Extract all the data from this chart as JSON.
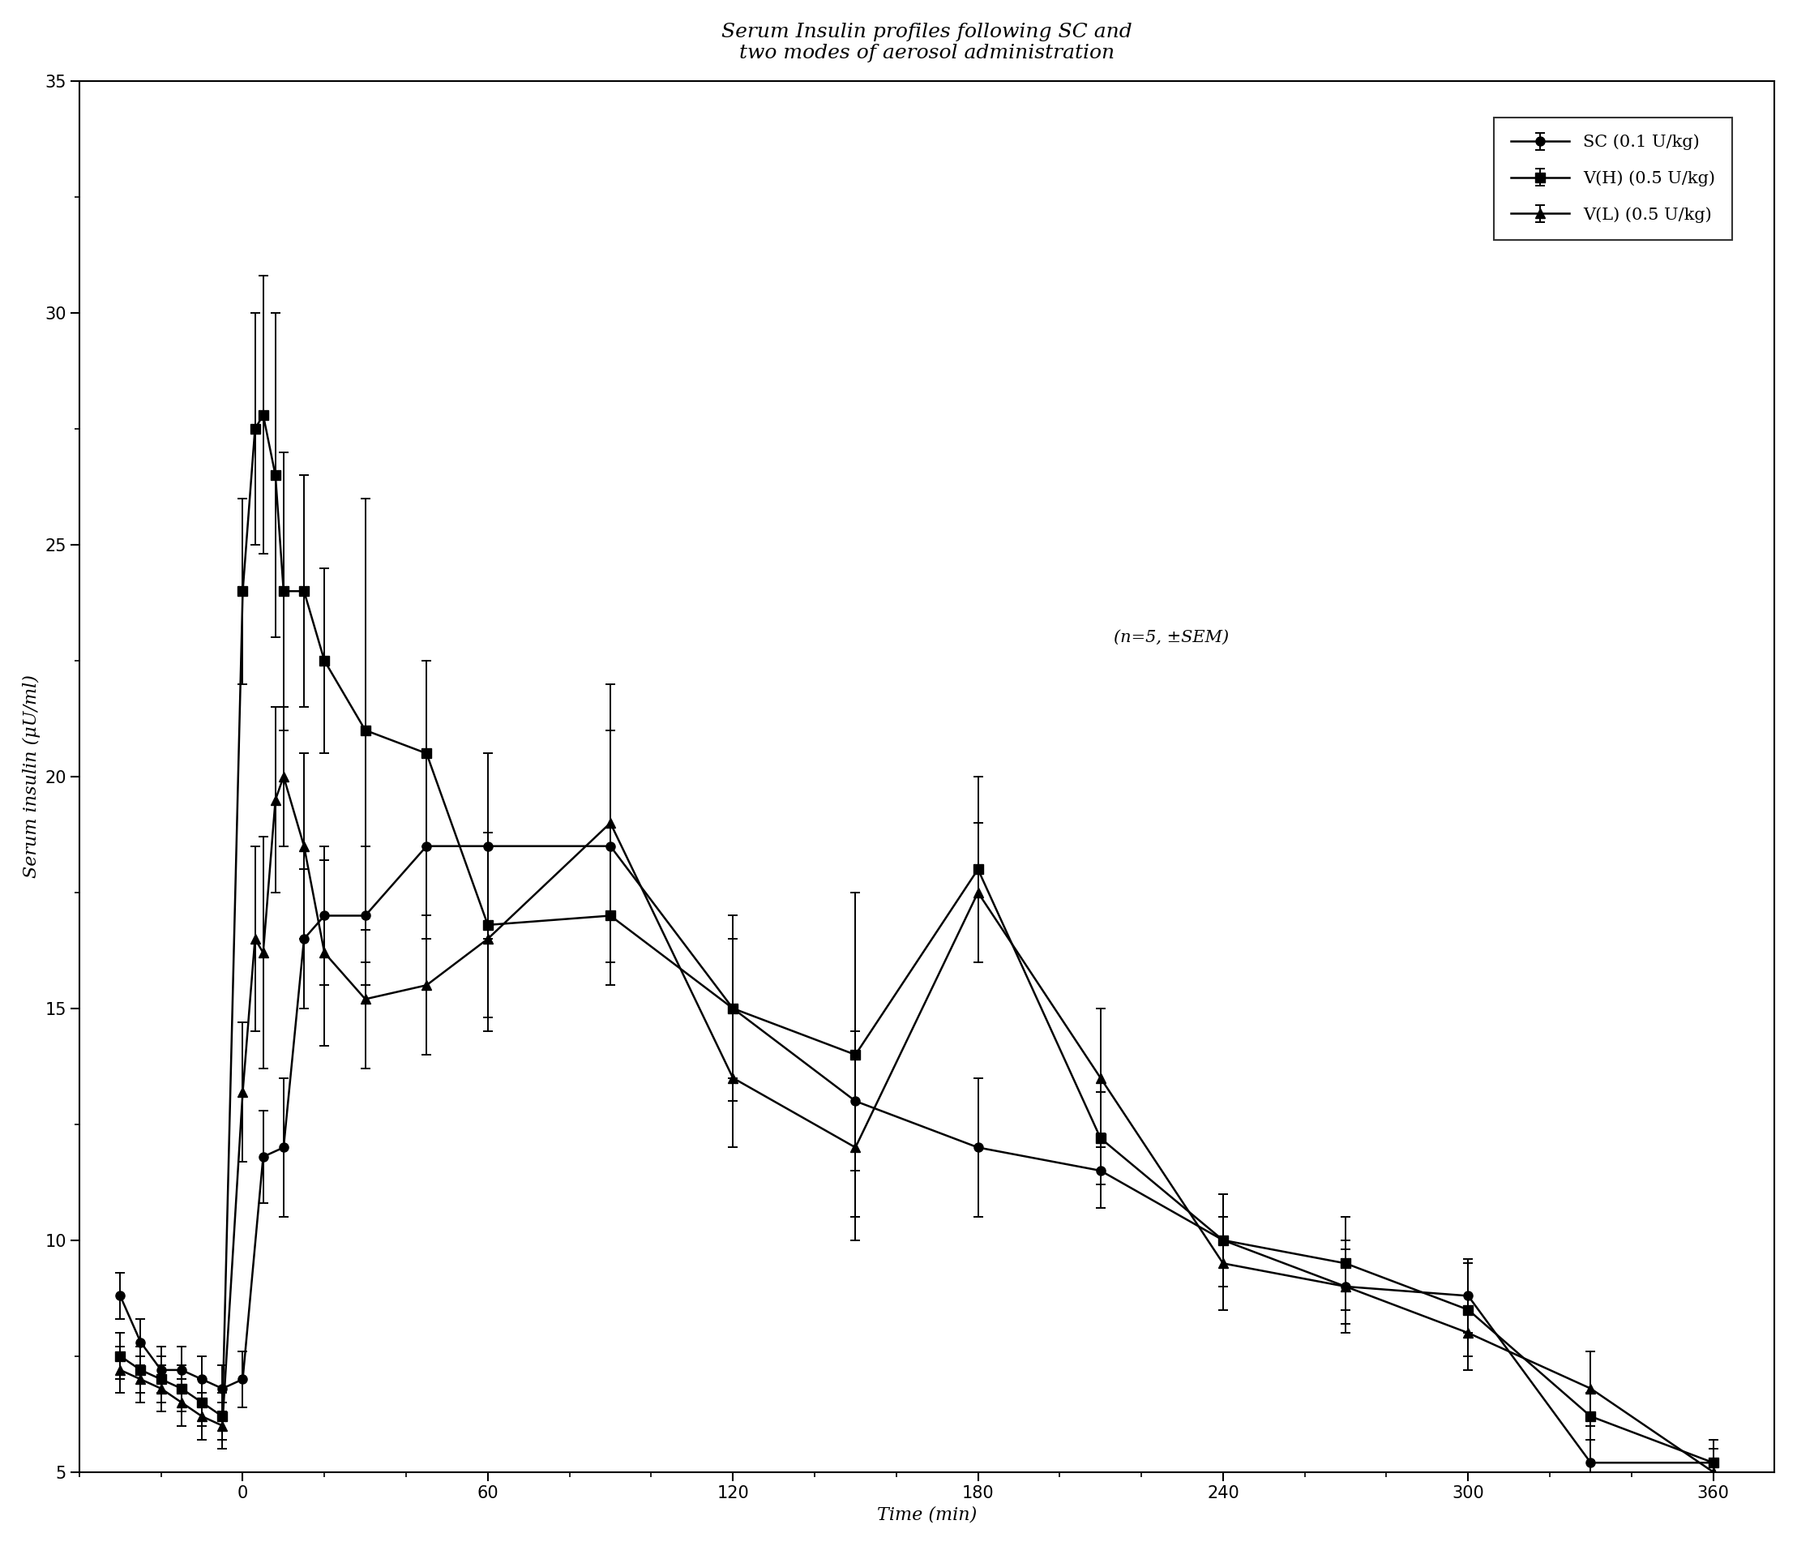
{
  "title_line1": "Serum Insulin profiles following SC and",
  "title_line2": "two modes of aerosol administration",
  "xlabel": "Time (min)",
  "ylabel": "Serum insulin (μU/ml)",
  "annotation": "(n=5, ±SEM)",
  "ylim": [
    5,
    35
  ],
  "yticks": [
    5,
    10,
    15,
    20,
    25,
    30,
    35
  ],
  "xticks": [
    0,
    60,
    120,
    180,
    240,
    300,
    360
  ],
  "xlim": [
    -40,
    375
  ],
  "SC": {
    "label": "SC (0.1 U/kg)",
    "marker": "o",
    "x": [
      -30,
      -25,
      -20,
      -15,
      -10,
      -5,
      0,
      5,
      10,
      15,
      20,
      30,
      45,
      60,
      90,
      120,
      150,
      180,
      210,
      240,
      270,
      300,
      330,
      360
    ],
    "y": [
      8.8,
      7.8,
      7.2,
      7.2,
      7.0,
      6.8,
      7.0,
      11.8,
      12.0,
      16.5,
      17.0,
      17.0,
      18.5,
      18.5,
      18.5,
      15.0,
      13.0,
      12.0,
      11.5,
      10.0,
      9.0,
      8.8,
      5.2,
      5.2
    ],
    "yerr": [
      0.5,
      0.5,
      0.5,
      0.5,
      0.5,
      0.5,
      0.6,
      1.0,
      1.5,
      1.5,
      1.5,
      1.5,
      2.0,
      2.0,
      2.5,
      2.0,
      1.5,
      1.5,
      0.8,
      1.0,
      0.8,
      0.8,
      0.5,
      0.5
    ]
  },
  "VH": {
    "label": "V(H) (0.5 U/kg)",
    "marker": "s",
    "x": [
      -30,
      -25,
      -20,
      -15,
      -10,
      -5,
      0,
      3,
      5,
      8,
      10,
      15,
      20,
      30,
      45,
      60,
      90,
      120,
      150,
      180,
      210,
      240,
      270,
      300,
      330,
      360
    ],
    "y": [
      7.5,
      7.2,
      7.0,
      6.8,
      6.5,
      6.2,
      24.0,
      27.5,
      27.8,
      26.5,
      24.0,
      24.0,
      22.5,
      21.0,
      20.5,
      16.8,
      17.0,
      15.0,
      14.0,
      18.0,
      12.2,
      10.0,
      9.5,
      8.5,
      6.2,
      5.2
    ],
    "yerr": [
      0.5,
      0.5,
      0.5,
      0.5,
      0.5,
      0.5,
      2.0,
      2.5,
      3.0,
      3.5,
      3.0,
      2.5,
      2.0,
      5.0,
      2.0,
      2.0,
      1.5,
      1.5,
      3.5,
      2.0,
      1.0,
      1.0,
      1.0,
      1.0,
      0.5,
      0.5
    ]
  },
  "VL": {
    "label": "V(L) (0.5 U/kg)",
    "marker": "^",
    "x": [
      -30,
      -25,
      -20,
      -15,
      -10,
      -5,
      0,
      3,
      5,
      8,
      10,
      15,
      20,
      30,
      45,
      60,
      90,
      120,
      150,
      180,
      210,
      240,
      270,
      300,
      330,
      360
    ],
    "y": [
      7.2,
      7.0,
      6.8,
      6.5,
      6.2,
      6.0,
      13.2,
      16.5,
      16.2,
      19.5,
      20.0,
      18.5,
      16.2,
      15.2,
      15.5,
      16.5,
      19.0,
      13.5,
      12.0,
      17.5,
      13.5,
      9.5,
      9.0,
      8.0,
      6.8,
      5.0
    ],
    "yerr": [
      0.5,
      0.5,
      0.5,
      0.5,
      0.5,
      0.5,
      1.5,
      2.0,
      2.5,
      2.0,
      1.5,
      2.0,
      2.0,
      1.5,
      1.5,
      2.0,
      3.0,
      1.5,
      2.0,
      1.5,
      1.5,
      1.0,
      1.0,
      0.8,
      0.8,
      0.5
    ]
  },
  "bg_color": "#ffffff",
  "title_fontsize": 18,
  "axis_label_fontsize": 16,
  "tick_fontsize": 15,
  "legend_fontsize": 15,
  "annotation_fontsize": 15,
  "linewidth": 1.8,
  "markersize": 8,
  "elinewidth": 1.4,
  "capsize": 4,
  "color": "#000000"
}
